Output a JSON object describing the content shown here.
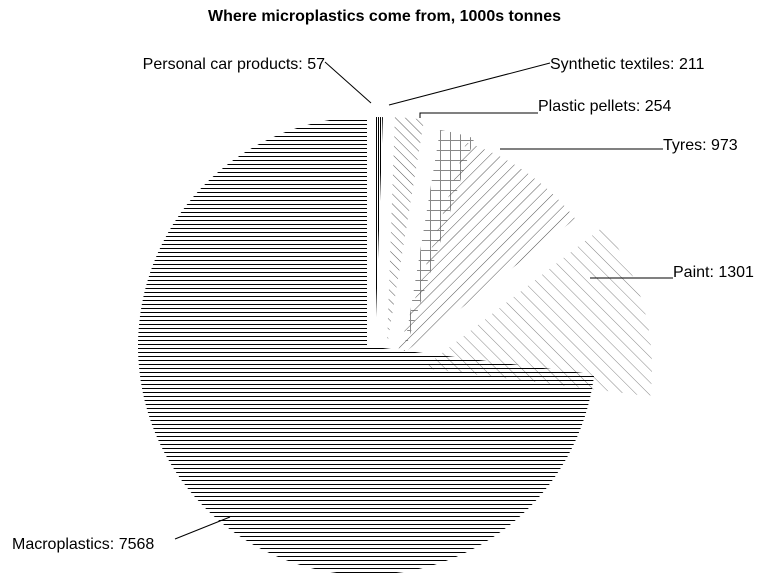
{
  "chart_data": {
    "type": "pie",
    "title": "Where microplastics come from, 1000s tonnes",
    "slices": [
      {
        "label": "Personal car products",
        "value": 57,
        "display": "Personal car products: 57",
        "pattern": "vertical-lines"
      },
      {
        "label": "Synthetic textiles",
        "value": 211,
        "display": "Synthetic textiles: 211",
        "pattern": "diagonal-rev"
      },
      {
        "label": "Plastic pellets",
        "value": 254,
        "display": "Plastic pellets: 254",
        "pattern": "grid"
      },
      {
        "label": "Tyres",
        "value": 973,
        "display": "Tyres: 973",
        "pattern": "diagonal-fwd"
      },
      {
        "label": "Paint",
        "value": 1301,
        "display": "Paint: 1301",
        "pattern": "diagonal-rev-light"
      },
      {
        "label": "Macroplastics",
        "value": 7568,
        "display": "Macroplastics: 7568",
        "pattern": "horizontal-lines"
      }
    ],
    "start_angle": "12 o'clock",
    "direction": "clockwise",
    "colors": {
      "line": "#000000",
      "pattern_dark": "#000000",
      "pattern_mid": "#555555",
      "pattern_light": "#888888",
      "background": "#ffffff"
    }
  }
}
